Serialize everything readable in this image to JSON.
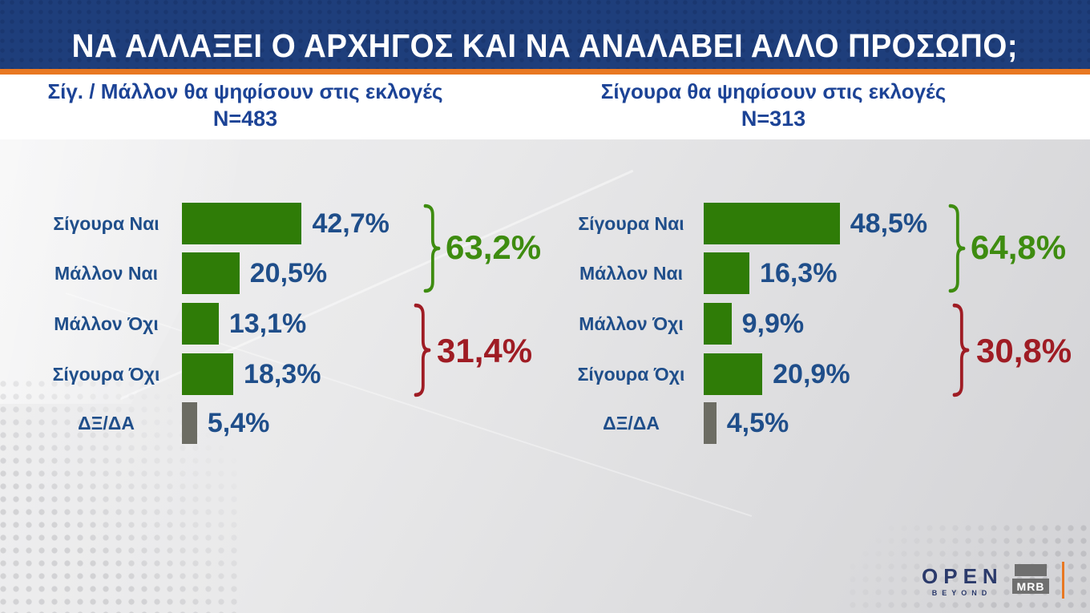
{
  "title": "ΝΑ ΑΛΛΑΞΕΙ Ο ΑΡΧΗΓΟΣ ΚΑΙ ΝΑ ΑΝΑΛΑΒΕΙ ΑΛΛΟ ΠΡΟΣΩΠΟ;",
  "colors": {
    "banner": "#1e3e7b",
    "orange": "#e87822",
    "header_blue": "#1c4396",
    "label_blue": "#1f4e8a",
    "bar_green": "#2f7c07",
    "bar_gray": "#6c6c63",
    "group_green": "#3e8c10",
    "group_red": "#9f1c24",
    "logo_navy": "#2b3a6b",
    "mrb_gray": "#6f6f6f"
  },
  "chart_data": [
    {
      "type": "bar",
      "orientation": "horizontal",
      "title": "Σίγ. / Μάλλον θα ψηφίσουν στις εκλογές",
      "sample": "N=483",
      "categories": [
        "Σίγουρα Ναι",
        "Μάλλον Ναι",
        "Μάλλον Όχι",
        "Σίγουρα Όχι",
        "ΔΞ/ΔΑ"
      ],
      "values": [
        42.7,
        20.5,
        13.1,
        18.3,
        5.4
      ],
      "display_values": [
        "42,7%",
        "20,5%",
        "13,1%",
        "18,3%",
        "5,4%"
      ],
      "bar_colors": [
        "green",
        "green",
        "green",
        "green",
        "gray"
      ],
      "groups": [
        {
          "display": "63,2%",
          "value": 63.2,
          "color": "green",
          "spans": [
            "Σίγουρα Ναι",
            "Μάλλον Ναι"
          ]
        },
        {
          "display": "31,4%",
          "value": 31.4,
          "color": "red",
          "spans": [
            "Μάλλον Όχι",
            "Σίγουρα Όχι"
          ]
        }
      ],
      "xlim": [
        0,
        100
      ],
      "grid": false,
      "legend": "none"
    },
    {
      "type": "bar",
      "orientation": "horizontal",
      "title": "Σίγουρα θα ψηφίσουν στις εκλογές",
      "sample": "N=313",
      "categories": [
        "Σίγουρα Ναι",
        "Μάλλον Ναι",
        "Μάλλον Όχι",
        "Σίγουρα Όχι",
        "ΔΞ/ΔΑ"
      ],
      "values": [
        48.5,
        16.3,
        9.9,
        20.9,
        4.5
      ],
      "display_values": [
        "48,5%",
        "16,3%",
        "9,9%",
        "20,9%",
        "4,5%"
      ],
      "bar_colors": [
        "green",
        "green",
        "green",
        "green",
        "gray"
      ],
      "groups": [
        {
          "display": "64,8%",
          "value": 64.8,
          "color": "green",
          "spans": [
            "Σίγουρα Ναι",
            "Μάλλον Ναι"
          ]
        },
        {
          "display": "30,8%",
          "value": 30.8,
          "color": "red",
          "spans": [
            "Μάλλον Όχι",
            "Σίγουρα Όχι"
          ]
        }
      ],
      "xlim": [
        0,
        100
      ],
      "grid": false,
      "legend": "none"
    }
  ],
  "footer": {
    "open": "OPEN",
    "open_sub": "BEYOND",
    "mrb": "MRB"
  }
}
